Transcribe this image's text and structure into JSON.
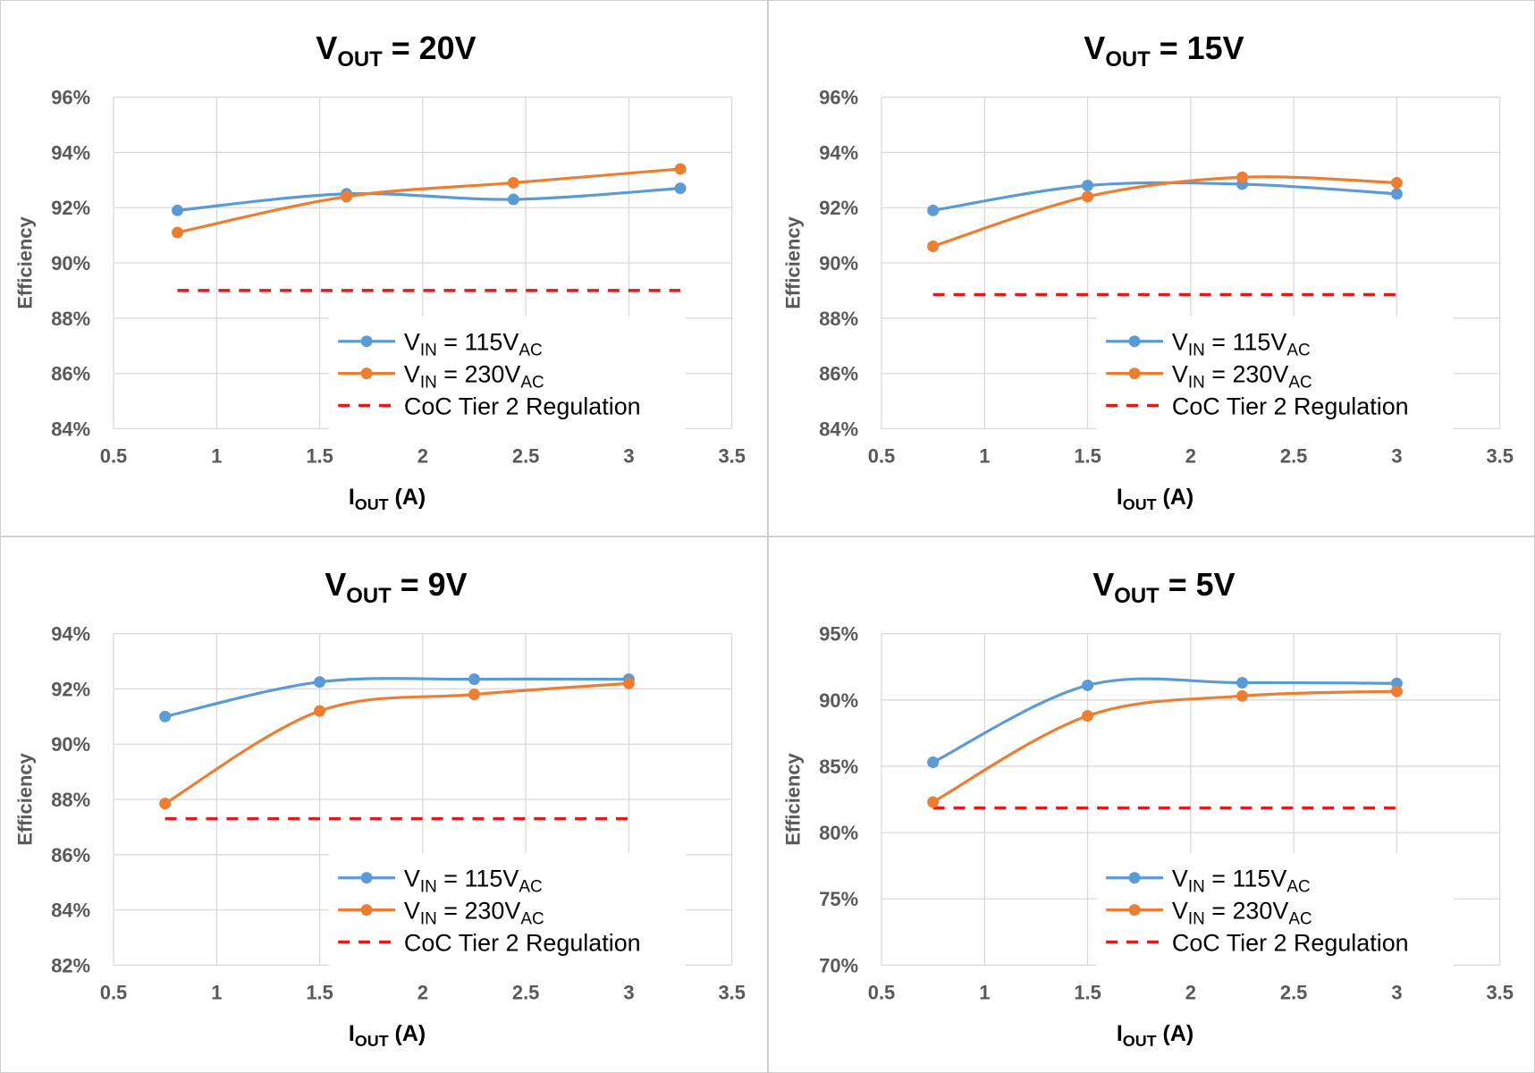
{
  "colors": {
    "series_115": "#5B9BD5",
    "series_230": "#ED7D31",
    "regulation": "#E31A1C",
    "grid": "#d9d9d9"
  },
  "legend": {
    "vin_prefix": "V",
    "vin_sub": "IN",
    "ac_sub": "AC",
    "s115_value": " = 115V",
    "s230_value": " = 230V",
    "regulation": "CoC Tier 2 Regulation"
  },
  "chart_data": [
    {
      "type": "line",
      "title": {
        "main": "V",
        "sub": "OUT",
        "rest": " = 20V"
      },
      "xlabel": {
        "main": "I",
        "sub": "OUT",
        "rest": " (A)"
      },
      "ylabel": "Efficiency",
      "xlim": [
        0.5,
        3.5
      ],
      "ylim": [
        84,
        96
      ],
      "xticks": [
        "0.5",
        "1",
        "1.5",
        "2",
        "2.5",
        "3",
        "3.5"
      ],
      "yticks": [
        "84%",
        "86%",
        "88%",
        "90%",
        "92%",
        "94%",
        "96%"
      ],
      "series": [
        {
          "name": "VIN = 115VAC",
          "x": [
            0.81,
            1.63,
            2.44,
            3.25
          ],
          "y": [
            91.9,
            92.5,
            92.3,
            92.7
          ]
        },
        {
          "name": "VIN = 230VAC",
          "x": [
            0.81,
            1.63,
            2.44,
            3.25
          ],
          "y": [
            91.1,
            92.4,
            92.9,
            93.4
          ]
        }
      ],
      "regulation": {
        "name": "CoC Tier 2 Regulation",
        "x": [
          0.81,
          3.25
        ],
        "y": 89.0
      }
    },
    {
      "type": "line",
      "title": {
        "main": "V",
        "sub": "OUT",
        "rest": " = 15V"
      },
      "xlabel": {
        "main": "I",
        "sub": "OUT",
        "rest": " (A)"
      },
      "ylabel": "Efficiency",
      "xlim": [
        0.5,
        3.5
      ],
      "ylim": [
        84,
        96
      ],
      "xticks": [
        "0.5",
        "1",
        "1.5",
        "2",
        "2.5",
        "3",
        "3.5"
      ],
      "yticks": [
        "84%",
        "86%",
        "88%",
        "90%",
        "92%",
        "94%",
        "96%"
      ],
      "series": [
        {
          "name": "VIN = 115VAC",
          "x": [
            0.75,
            1.5,
            2.25,
            3.0
          ],
          "y": [
            91.9,
            92.8,
            92.85,
            92.5
          ]
        },
        {
          "name": "VIN = 230VAC",
          "x": [
            0.75,
            1.5,
            2.25,
            3.0
          ],
          "y": [
            90.6,
            92.4,
            93.1,
            92.9
          ]
        }
      ],
      "regulation": {
        "name": "CoC Tier 2 Regulation",
        "x": [
          0.75,
          3.0
        ],
        "y": 88.85
      }
    },
    {
      "type": "line",
      "title": {
        "main": "V",
        "sub": "OUT",
        "rest": " = 9V"
      },
      "xlabel": {
        "main": "I",
        "sub": "OUT",
        "rest": " (A)"
      },
      "ylabel": "Efficiency",
      "xlim": [
        0.5,
        3.5
      ],
      "ylim": [
        82,
        94
      ],
      "xticks": [
        "0.5",
        "1",
        "1.5",
        "2",
        "2.5",
        "3",
        "3.5"
      ],
      "yticks": [
        "82%",
        "84%",
        "86%",
        "88%",
        "90%",
        "92%",
        "94%"
      ],
      "series": [
        {
          "name": "VIN = 115VAC",
          "x": [
            0.75,
            1.5,
            2.25,
            3.0
          ],
          "y": [
            91.0,
            92.25,
            92.35,
            92.35
          ]
        },
        {
          "name": "VIN = 230VAC",
          "x": [
            0.75,
            1.5,
            2.25,
            3.0
          ],
          "y": [
            87.85,
            91.2,
            91.8,
            92.2
          ]
        }
      ],
      "regulation": {
        "name": "CoC Tier 2 Regulation",
        "x": [
          0.75,
          3.0
        ],
        "y": 87.3
      }
    },
    {
      "type": "line",
      "title": {
        "main": "V",
        "sub": "OUT",
        "rest": " = 5V"
      },
      "xlabel": {
        "main": "I",
        "sub": "OUT",
        "rest": " (A)"
      },
      "ylabel": "Efficiency",
      "xlim": [
        0.5,
        3.5
      ],
      "ylim": [
        70,
        95
      ],
      "xticks": [
        "0.5",
        "1",
        "1.5",
        "2",
        "2.5",
        "3",
        "3.5"
      ],
      "yticks": [
        "70%",
        "75%",
        "80%",
        "85%",
        "90%",
        "95%"
      ],
      "series": [
        {
          "name": "VIN = 115VAC",
          "x": [
            0.75,
            1.5,
            2.25,
            3.0
          ],
          "y": [
            85.3,
            91.1,
            91.3,
            91.25
          ]
        },
        {
          "name": "VIN = 230VAC",
          "x": [
            0.75,
            1.5,
            2.25,
            3.0
          ],
          "y": [
            82.3,
            88.8,
            90.3,
            90.65
          ]
        }
      ],
      "regulation": {
        "name": "CoC Tier 2 Regulation",
        "x": [
          0.75,
          3.0
        ],
        "y": 81.85
      }
    }
  ]
}
